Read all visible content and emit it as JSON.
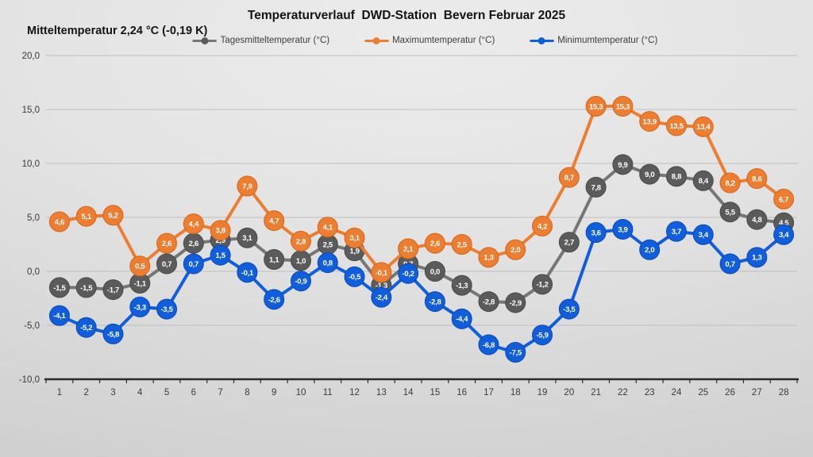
{
  "chart_data": {
    "type": "line",
    "title": "Temperaturverlauf  DWD-Station  Bevern Februar 2025",
    "subtitle": "Mitteltemperatur 2,24 °C (-0,19 K)",
    "xlabel": "",
    "ylabel": "",
    "x": [
      1,
      2,
      3,
      4,
      5,
      6,
      7,
      8,
      9,
      10,
      11,
      12,
      13,
      14,
      15,
      16,
      17,
      18,
      19,
      20,
      21,
      22,
      23,
      24,
      25,
      26,
      27,
      28
    ],
    "ylim": [
      -10,
      20
    ],
    "ytick_values": [
      20,
      15,
      10,
      5,
      0,
      -5,
      -10
    ],
    "ytick_labels": [
      "20,0",
      "15,0",
      "10,0",
      "5,0",
      "0,0",
      "-5,0",
      "-10,0"
    ],
    "grid": true,
    "legend_position": "top",
    "decimal_separator": ",",
    "series": [
      {
        "id": "mean",
        "name": "Tagesmitteltemperatur (°C)",
        "color": "#5b5b5b",
        "line_color": "#767676",
        "edge_color": "#494949",
        "values": [
          -1.5,
          -1.5,
          -1.7,
          -1.1,
          0.7,
          2.6,
          2.9,
          3.1,
          1.1,
          1.0,
          2.5,
          1.9,
          -1.3,
          0.7,
          0.0,
          -1.3,
          -2.8,
          -2.9,
          -1.2,
          2.7,
          7.8,
          9.9,
          9.0,
          8.8,
          8.4,
          5.5,
          4.8,
          4.5
        ]
      },
      {
        "id": "max",
        "name": "Maximumtemperatur (°C)",
        "color": "#ed7d31",
        "line_color": "#ed7d31",
        "edge_color": "#d1671c",
        "values": [
          4.6,
          5.1,
          5.2,
          0.5,
          2.6,
          4.4,
          3.8,
          7.9,
          4.7,
          2.8,
          4.1,
          3.1,
          -0.1,
          2.1,
          2.6,
          2.5,
          1.3,
          2.0,
          4.2,
          8.7,
          15.3,
          15.3,
          13.9,
          13.5,
          13.4,
          8.2,
          8.6,
          6.7
        ]
      },
      {
        "id": "min",
        "name": "Minimumtemperatur (°C)",
        "color": "#105edb",
        "line_color": "#105edb",
        "edge_color": "#0b49b0",
        "values": [
          -4.1,
          -5.2,
          -5.8,
          -3.3,
          -3.5,
          0.7,
          1.5,
          -0.1,
          -2.6,
          -0.9,
          0.8,
          -0.5,
          -2.4,
          -0.2,
          -2.8,
          -4.4,
          -6.8,
          -7.5,
          -5.9,
          -3.5,
          3.6,
          3.9,
          2.0,
          3.7,
          3.4,
          0.7,
          1.3,
          3.4
        ]
      }
    ]
  }
}
